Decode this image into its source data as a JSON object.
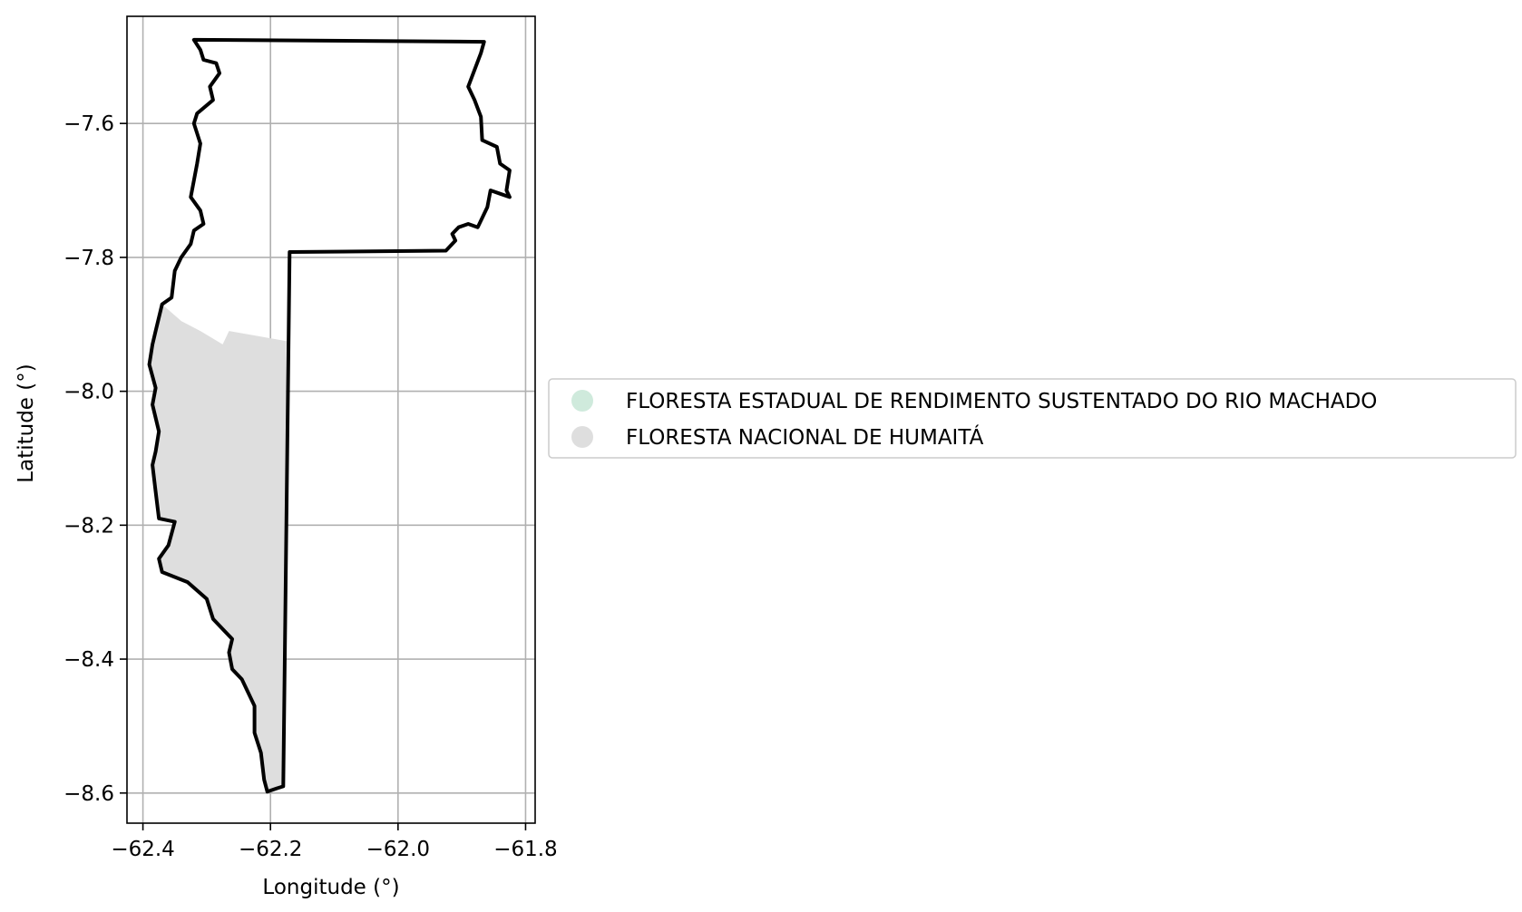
{
  "chart_data": {
    "type": "map",
    "xlabel": "Longitude (°)",
    "ylabel": "Latitude (°)",
    "xlim": [
      -62.425,
      -61.785
    ],
    "ylim": [
      -8.645,
      -7.44
    ],
    "grid": true,
    "x_ticks": [
      -62.4,
      -62.2,
      -62.0,
      -61.8
    ],
    "y_ticks": [
      -7.6,
      -7.8,
      -8.0,
      -8.2,
      -8.4,
      -8.6
    ],
    "x_tick_labels": [
      "−62.4",
      "−62.2",
      "−62.0",
      "−61.8"
    ],
    "y_tick_labels": [
      "−7.6",
      "−7.8",
      "−8.0",
      "−8.2",
      "−8.4",
      "−8.6"
    ],
    "legend": {
      "placement": "right",
      "entries": [
        {
          "label": "FLORESTA ESTADUAL DE RENDIMENTO SUSTENTADO DO RIO MACHADO",
          "color": "#cfeadc"
        },
        {
          "label": "FLORESTA NACIONAL DE HUMAITÁ",
          "color": "#dedede"
        }
      ]
    },
    "boundary": {
      "color": "#000000",
      "coords": [
        [
          -62.32,
          -7.475
        ],
        [
          -61.865,
          -7.478
        ],
        [
          -61.87,
          -7.495
        ],
        [
          -61.88,
          -7.52
        ],
        [
          -61.89,
          -7.545
        ],
        [
          -61.88,
          -7.565
        ],
        [
          -61.87,
          -7.59
        ],
        [
          -61.868,
          -7.625
        ],
        [
          -61.845,
          -7.635
        ],
        [
          -61.84,
          -7.66
        ],
        [
          -61.825,
          -7.67
        ],
        [
          -61.83,
          -7.7
        ],
        [
          -61.825,
          -7.71
        ],
        [
          -61.84,
          -7.705
        ],
        [
          -61.855,
          -7.7
        ],
        [
          -61.86,
          -7.725
        ],
        [
          -61.875,
          -7.755
        ],
        [
          -61.89,
          -7.75
        ],
        [
          -61.905,
          -7.755
        ],
        [
          -61.915,
          -7.765
        ],
        [
          -61.91,
          -7.775
        ],
        [
          -61.925,
          -7.79
        ],
        [
          -62.17,
          -7.792
        ],
        [
          -62.18,
          -8.59
        ],
        [
          -62.19,
          -8.593
        ],
        [
          -62.205,
          -8.598
        ],
        [
          -62.21,
          -8.58
        ],
        [
          -62.215,
          -8.54
        ],
        [
          -62.225,
          -8.51
        ],
        [
          -62.225,
          -8.47
        ],
        [
          -62.245,
          -8.43
        ],
        [
          -62.26,
          -8.415
        ],
        [
          -62.265,
          -8.39
        ],
        [
          -62.26,
          -8.37
        ],
        [
          -62.29,
          -8.34
        ],
        [
          -62.3,
          -8.31
        ],
        [
          -62.33,
          -8.285
        ],
        [
          -62.37,
          -8.27
        ],
        [
          -62.375,
          -8.25
        ],
        [
          -62.36,
          -8.23
        ],
        [
          -62.35,
          -8.195
        ],
        [
          -62.375,
          -8.19
        ],
        [
          -62.38,
          -8.15
        ],
        [
          -62.385,
          -8.11
        ],
        [
          -62.38,
          -8.09
        ],
        [
          -62.375,
          -8.06
        ],
        [
          -62.385,
          -8.02
        ],
        [
          -62.38,
          -7.995
        ],
        [
          -62.39,
          -7.96
        ],
        [
          -62.385,
          -7.93
        ],
        [
          -62.38,
          -7.91
        ],
        [
          -62.37,
          -7.87
        ],
        [
          -62.355,
          -7.86
        ],
        [
          -62.35,
          -7.82
        ],
        [
          -62.34,
          -7.8
        ],
        [
          -62.325,
          -7.78
        ],
        [
          -62.32,
          -7.76
        ],
        [
          -62.305,
          -7.75
        ],
        [
          -62.31,
          -7.73
        ],
        [
          -62.325,
          -7.71
        ],
        [
          -62.32,
          -7.685
        ],
        [
          -62.315,
          -7.66
        ],
        [
          -62.31,
          -7.63
        ],
        [
          -62.32,
          -7.6
        ],
        [
          -62.315,
          -7.585
        ],
        [
          -62.29,
          -7.565
        ],
        [
          -62.295,
          -7.545
        ],
        [
          -62.28,
          -7.525
        ],
        [
          -62.285,
          -7.51
        ],
        [
          -62.305,
          -7.505
        ],
        [
          -62.31,
          -7.49
        ],
        [
          -62.32,
          -7.475
        ]
      ]
    },
    "series": [
      {
        "name": "FLORESTA NACIONAL DE HUMAITÁ",
        "color": "#dedede",
        "coords": [
          [
            -62.37,
            -7.87
          ],
          [
            -62.34,
            -7.895
          ],
          [
            -62.31,
            -7.91
          ],
          [
            -62.275,
            -7.93
          ],
          [
            -62.265,
            -7.91
          ],
          [
            -62.175,
            -7.925
          ],
          [
            -62.18,
            -8.59
          ],
          [
            -62.205,
            -8.598
          ],
          [
            -62.21,
            -8.58
          ],
          [
            -62.215,
            -8.54
          ],
          [
            -62.225,
            -8.51
          ],
          [
            -62.225,
            -8.47
          ],
          [
            -62.245,
            -8.43
          ],
          [
            -62.26,
            -8.415
          ],
          [
            -62.265,
            -8.39
          ],
          [
            -62.26,
            -8.37
          ],
          [
            -62.29,
            -8.34
          ],
          [
            -62.3,
            -8.31
          ],
          [
            -62.33,
            -8.285
          ],
          [
            -62.37,
            -8.27
          ],
          [
            -62.375,
            -8.25
          ],
          [
            -62.36,
            -8.23
          ],
          [
            -62.35,
            -8.195
          ],
          [
            -62.375,
            -8.19
          ],
          [
            -62.38,
            -8.15
          ],
          [
            -62.385,
            -8.11
          ],
          [
            -62.38,
            -8.09
          ],
          [
            -62.375,
            -8.06
          ],
          [
            -62.385,
            -8.02
          ],
          [
            -62.38,
            -7.995
          ],
          [
            -62.39,
            -7.96
          ],
          [
            -62.385,
            -7.93
          ],
          [
            -62.38,
            -7.91
          ],
          [
            -62.37,
            -7.87
          ]
        ]
      }
    ]
  }
}
